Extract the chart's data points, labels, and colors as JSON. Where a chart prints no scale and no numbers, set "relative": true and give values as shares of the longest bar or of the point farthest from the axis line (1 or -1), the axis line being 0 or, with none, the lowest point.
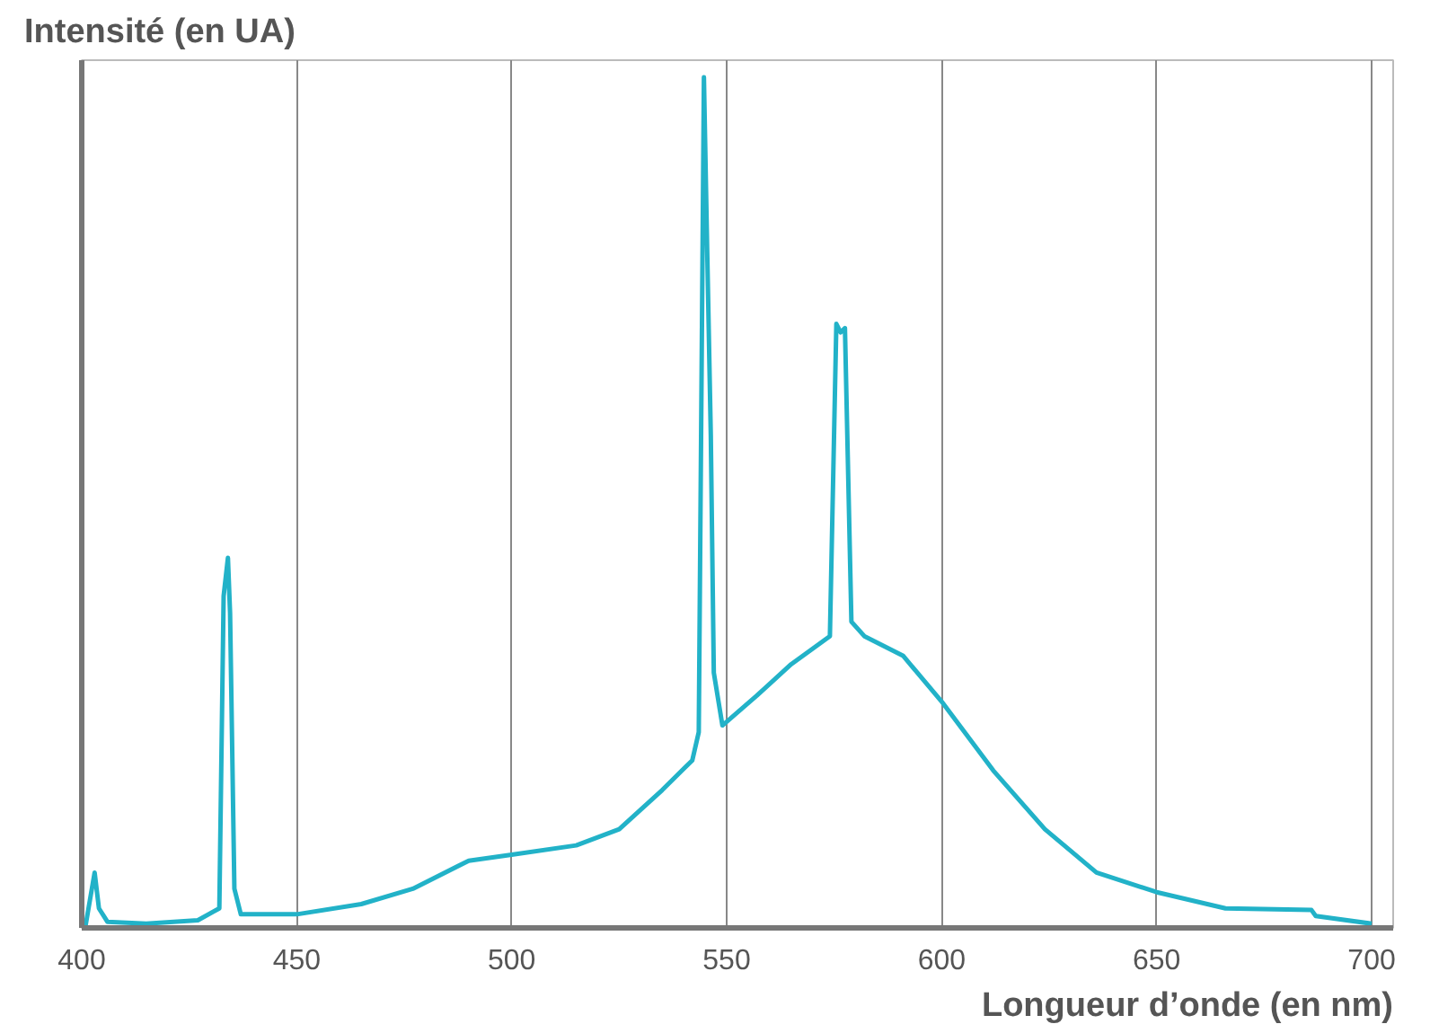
{
  "chart_data": {
    "type": "line",
    "ylabel": "Intensité (en UA)",
    "xlabel": "Longueur d’onde (en nm)",
    "relative": true,
    "xlim": [
      400,
      705
    ],
    "xticks": [
      400,
      450,
      500,
      550,
      600,
      650,
      700
    ],
    "grid": "x",
    "tick_labels": "x",
    "marker": "none",
    "line_style": "solid",
    "series": [
      {
        "color": "#22b2c8",
        "x": [
          400.8,
          403,
          404,
          406,
          415,
          427,
          432,
          433,
          434,
          434.5,
          435.5,
          437,
          450,
          465,
          477,
          490,
          500,
          515,
          525,
          535,
          542,
          543.5,
          544.7,
          545.5,
          546.3,
          547,
          549,
          557,
          565,
          574,
          575.5,
          576.5,
          577.5,
          579,
          582,
          591,
          600,
          612,
          624,
          636,
          650,
          666,
          686,
          687,
          700
        ],
        "values": [
          0,
          0.065,
          0.023,
          0.007,
          0.005,
          0.009,
          0.023,
          0.39,
          0.435,
          0.37,
          0.046,
          0.016,
          0.016,
          0.028,
          0.046,
          0.079,
          0.086,
          0.097,
          0.116,
          0.162,
          0.197,
          0.23,
          1.0,
          0.787,
          0.579,
          0.3,
          0.238,
          0.273,
          0.31,
          0.343,
          0.71,
          0.7,
          0.705,
          0.36,
          0.343,
          0.32,
          0.266,
          0.185,
          0.116,
          0.065,
          0.042,
          0.023,
          0.021,
          0.014,
          0.005
        ]
      }
    ]
  }
}
